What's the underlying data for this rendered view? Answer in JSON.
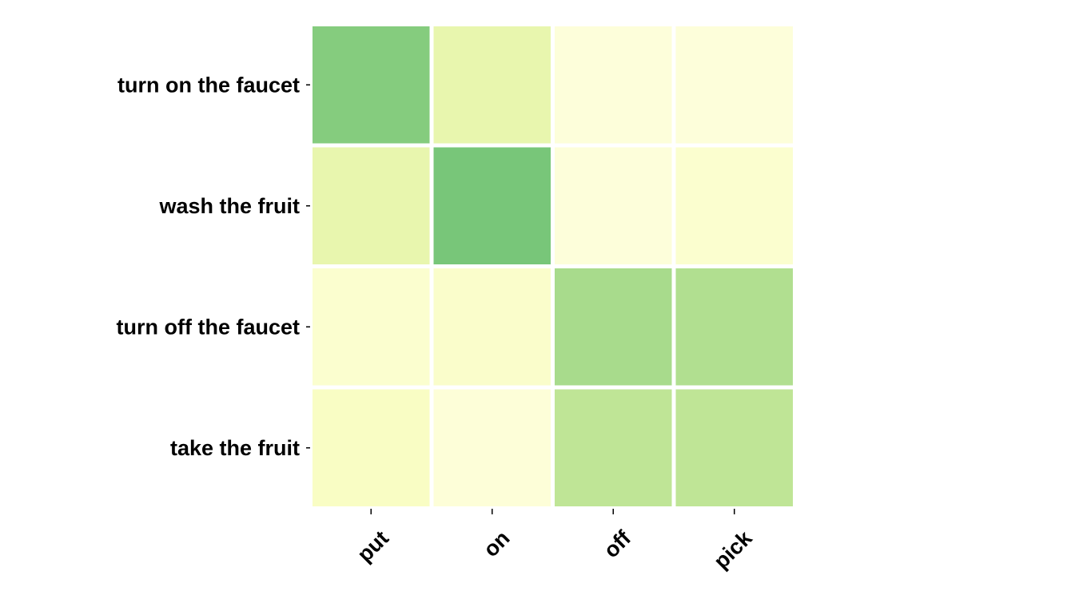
{
  "chart_data": {
    "type": "heatmap",
    "title": "",
    "xlabel": "",
    "ylabel": "",
    "x_categories": [
      "put",
      "on",
      "off",
      "pick"
    ],
    "y_categories": [
      "turn on the faucet",
      "wash the fruit",
      "turn off the faucet",
      "take the fruit"
    ],
    "values": [
      [
        0.75,
        0.3,
        0.05,
        0.05
      ],
      [
        0.3,
        0.8,
        0.05,
        0.1
      ],
      [
        0.1,
        0.12,
        0.62,
        0.58
      ],
      [
        0.15,
        0.06,
        0.52,
        0.52
      ]
    ],
    "value_range": [
      0,
      1
    ],
    "colormap": "YlGn",
    "color_stops": [
      "#ffffe5",
      "#f7fcb9",
      "#d9f0a3",
      "#addd8e",
      "#78c679",
      "#41ab5d"
    ],
    "cell_border_color": "#ffffff",
    "grid": false,
    "legend": "none"
  }
}
